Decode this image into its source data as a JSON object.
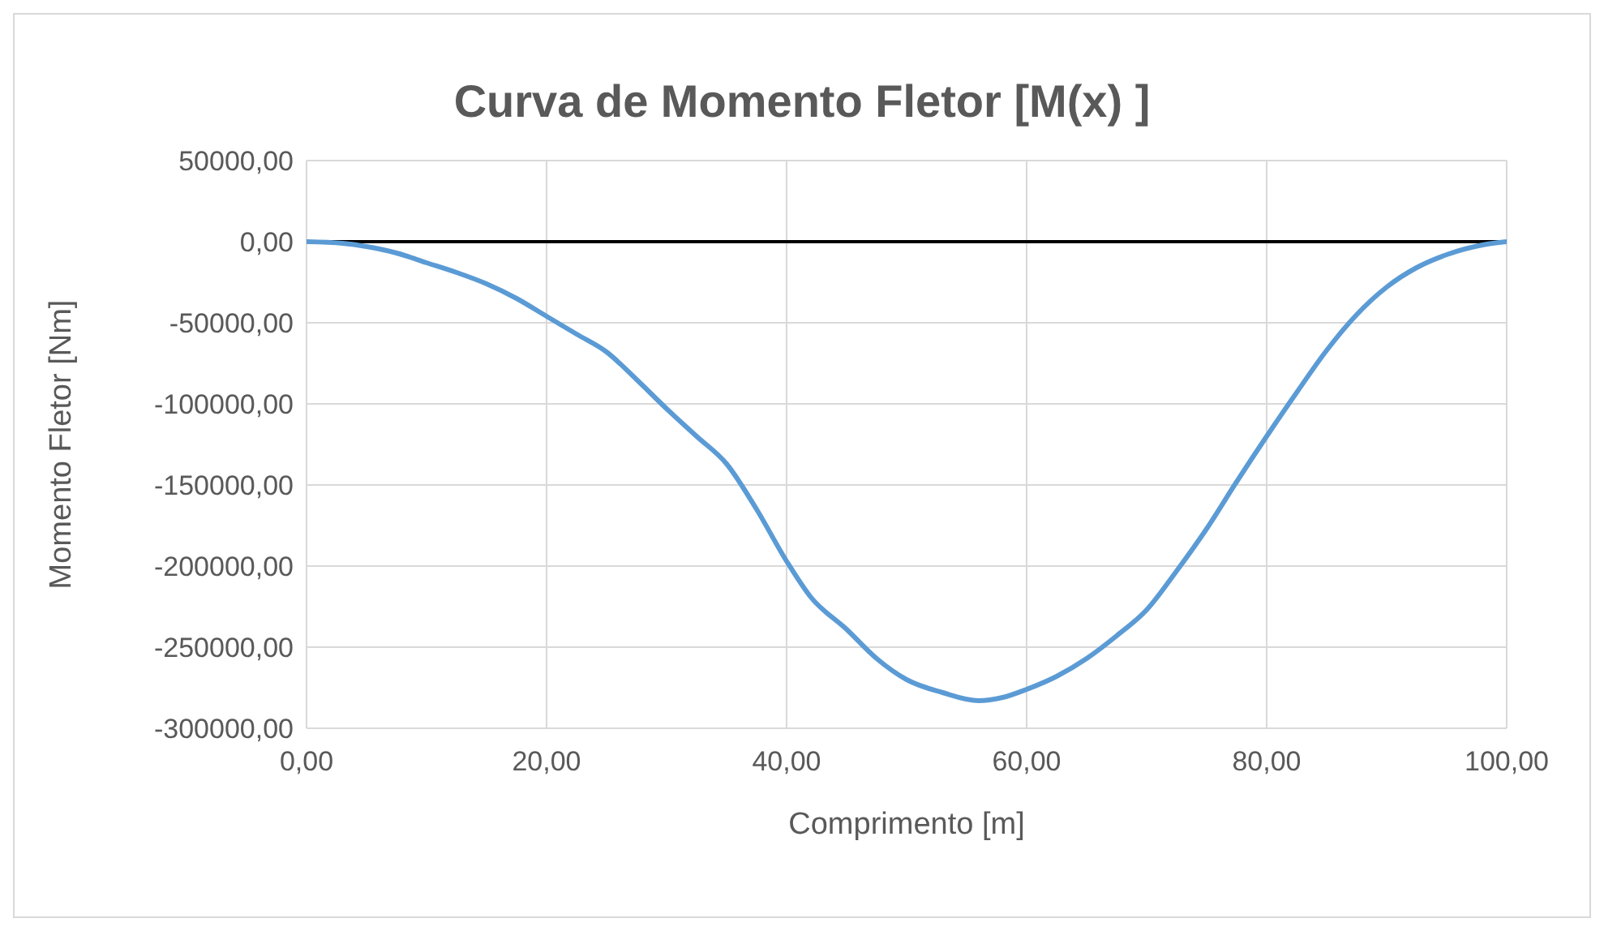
{
  "chart_data": {
    "type": "line",
    "title": "Curva de Momento Fletor [M(x) ]",
    "xlabel": "Comprimento [m]",
    "ylabel": "Momento Fletor [Nm]",
    "x": [
      0,
      3,
      5,
      7.5,
      10,
      12.5,
      15,
      17.5,
      20,
      22.5,
      25,
      27.5,
      30,
      32.5,
      35,
      37.5,
      40,
      42,
      45,
      47.5,
      50,
      53,
      56,
      58,
      60,
      62.5,
      65,
      67.5,
      70,
      72.5,
      75,
      77.5,
      80,
      82.5,
      85,
      87.5,
      90,
      92.5,
      95,
      98,
      100
    ],
    "series": [
      {
        "color": "#5b9bd5",
        "values": [
          0,
          -1000,
          -3000,
          -7000,
          -13000,
          -19000,
          -26000,
          -35000,
          -46000,
          -57000,
          -68000,
          -85000,
          -103000,
          -120000,
          -137000,
          -165000,
          -197000,
          -219000,
          -239000,
          -257000,
          -270000,
          -278000,
          -283000,
          -281000,
          -276000,
          -268000,
          -257000,
          -243000,
          -227000,
          -203000,
          -177000,
          -148000,
          -120000,
          -93000,
          -67000,
          -45000,
          -28000,
          -16000,
          -8000,
          -2000,
          0
        ]
      }
    ],
    "xlim": [
      0,
      100
    ],
    "xticks": [
      {
        "value": 0,
        "label": "0,00"
      },
      {
        "value": 20,
        "label": "20,00"
      },
      {
        "value": 40,
        "label": "40,00"
      },
      {
        "value": 60,
        "label": "60,00"
      },
      {
        "value": 80,
        "label": "80,00"
      },
      {
        "value": 100,
        "label": "100,00"
      }
    ],
    "ylim": [
      -300000,
      50000
    ],
    "yticks": [
      {
        "value": -300000,
        "label": "-300000,00"
      },
      {
        "value": -250000,
        "label": "-250000,00"
      },
      {
        "value": -200000,
        "label": "-200000,00"
      },
      {
        "value": -150000,
        "label": "-150000,00"
      },
      {
        "value": -100000,
        "label": "-100000,00"
      },
      {
        "value": -50000,
        "label": "-50000,00"
      },
      {
        "value": 0,
        "label": "0,00"
      },
      {
        "value": 50000,
        "label": "50000,00"
      }
    ],
    "ref_lines": [
      {
        "axis": "y",
        "value": 0,
        "color": "#000000"
      }
    ],
    "grid": true,
    "legend": false,
    "marker": "none",
    "line_style": "solid"
  }
}
